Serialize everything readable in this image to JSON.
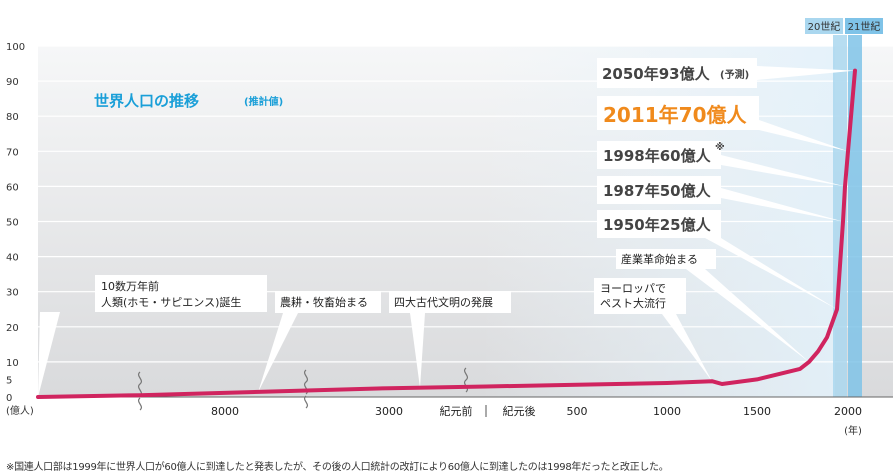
{
  "title": "世界人口の推移",
  "subtitle": "(推計値)",
  "footnote": "※国連人口部は1999年に世界人口が60億人に到達したと発表したが、その後の人口統計の改訂により60億人に到達したのは1998年だったと改正した。",
  "colors": {
    "line": "#d0245f",
    "title": "#1a9fd8",
    "highlight": "#f08a1c",
    "century_band": "#aad7ef",
    "century_band_21": "#7fc3e8",
    "background_top": "#f4f5f6",
    "background_bottom": "#dcdddf"
  },
  "chart_data": {
    "type": "line",
    "title": "世界人口の推移",
    "ylabel": "(億人)",
    "xlabel": "(年)",
    "ylim": [
      0,
      100
    ],
    "yticks": [
      "0",
      "5",
      "10",
      "20",
      "30",
      "40",
      "50",
      "60",
      "70",
      "80",
      "90",
      "100"
    ],
    "yticks_values": [
      0,
      5,
      10,
      20,
      30,
      40,
      50,
      60,
      70,
      80,
      90,
      100
    ],
    "xticks": [
      "8000",
      "3000",
      "紀元前",
      "紀元後",
      "500",
      "1000",
      "1500",
      "2000"
    ],
    "scale_note": "Horizontal axis is non-linear; axis breaks (≈) before 8000 BC, between 8000 BC and 3000 BC, and before the BC/AD boundary.",
    "series": [
      {
        "x": [
          "10数万年前",
          "8000 BC",
          "3000 BC",
          "1 AD",
          "500",
          "1000",
          "1250",
          "1300",
          "1500",
          "1750",
          "1800",
          "1850",
          "1900",
          "1950",
          "1987",
          "1998",
          "2011",
          "2050"
        ],
        "values": [
          0,
          0.5,
          2.5,
          3,
          3.5,
          4,
          4.5,
          3.7,
          5,
          8,
          10,
          13,
          17,
          25,
          50,
          60,
          70,
          93
        ]
      }
    ],
    "centuries": [
      "20世紀",
      "21世紀"
    ],
    "annotations": [
      {
        "label": "2050年93億人",
        "note": "(予測)"
      },
      {
        "label": "2011年70億人",
        "highlight": true
      },
      {
        "label": "1998年60億人",
        "note": "※"
      },
      {
        "label": "1987年50億人"
      },
      {
        "label": "1950年25億人"
      },
      {
        "label": "産業革命始まる"
      },
      {
        "label": "ヨーロッパで ペスト大流行"
      },
      {
        "label": "10数万年前 人類(ホモ・サピエンス)誕生"
      },
      {
        "label": "農耕・牧畜始まる"
      },
      {
        "label": "四大古代文明の発展"
      }
    ],
    "grid": true,
    "legend": "none"
  }
}
